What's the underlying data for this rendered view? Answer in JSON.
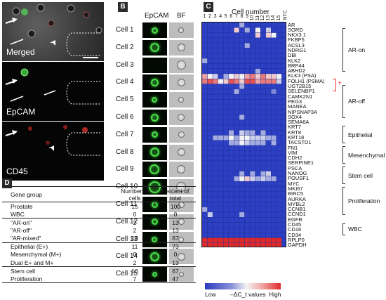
{
  "panels": {
    "a": "A",
    "b": "B",
    "c": "C",
    "d": "D"
  },
  "panel_a": {
    "images": [
      {
        "label": "Merged"
      },
      {
        "label": "EpCAM"
      },
      {
        "label": "CD45"
      }
    ]
  },
  "panel_b": {
    "col_headers": [
      "EpCAM",
      "BF"
    ],
    "cells": [
      "Cell 1",
      "Cell 2",
      "Cell 3",
      "Cell 4",
      "Cell 5",
      "Cell 6",
      "Cell 7",
      "Cell 8",
      "Cell 9",
      "Cell 10",
      "Cell 11",
      "Cell 12",
      "Cell 13",
      "Cell 14",
      "Cell 15"
    ]
  },
  "panel_c": {
    "title": "Cell number",
    "columns": [
      "1",
      "2",
      "3",
      "4",
      "5",
      "6",
      "7",
      "8",
      "9",
      "10",
      "11",
      "12",
      "13",
      "14",
      "15",
      "NTC"
    ],
    "genes": [
      "AR",
      "SORD",
      "NKX3.1",
      "FKBP5",
      "ACSL3",
      "NDRG1",
      "DBI",
      "KLK2",
      "BRP44",
      "ABHD2",
      "KLK3 (PSA)",
      "FOLH1 (PSMA)",
      "UGT2B15",
      "SELENBP1",
      "CAMK2N1",
      "PEG3",
      "MANEA",
      "NIPSNAP3A",
      "SOX4",
      "SEMA6A",
      "KRT7",
      "KRT8",
      "KRT18",
      "TACSTD1",
      "FN1",
      "VIM",
      "CDH2",
      "SERPINE1",
      "PSCA",
      "NANOG",
      "POUSF1",
      "MYC",
      "MKI67",
      "BIRC5",
      "AURKA",
      "MYBL2",
      "CCNB1",
      "CCND1",
      "EGFR",
      "CD45",
      "CD16",
      "CD34",
      "RPLP0",
      "GAPDH"
    ],
    "groups": [
      {
        "name": "AR-on"
      },
      {
        "name": "AR-off"
      },
      {
        "name": "Epithelial"
      },
      {
        "name": "Mesenchymal"
      },
      {
        "name": "Stem cell"
      },
      {
        "name": "Proliferation"
      },
      {
        "name": "WBC"
      }
    ],
    "highlight_mark": "*",
    "legend": {
      "low": "Low",
      "mid": "–ΔC_t values",
      "high": "High"
    },
    "colors": {
      "low": "#2d3fc2",
      "high": "#e02a2a",
      "mid": "#f3f3f3"
    },
    "heatmap_values": [
      [
        0,
        0,
        0,
        0,
        0,
        0,
        0,
        0.3,
        0,
        0,
        0,
        0,
        0,
        0,
        0,
        0
      ],
      [
        0,
        0,
        0,
        0,
        0,
        0,
        0.6,
        0,
        0.3,
        0,
        0.5,
        0,
        0.4,
        0,
        0,
        0
      ],
      [
        0,
        0,
        0,
        0,
        0,
        0,
        0,
        0,
        0,
        0,
        0.6,
        0,
        0.6,
        0.5,
        0,
        0
      ],
      [
        0,
        0,
        0,
        0,
        0,
        0,
        0,
        0,
        0,
        0,
        0,
        0,
        0,
        0,
        0,
        0
      ],
      [
        0,
        0,
        0,
        0,
        0,
        0,
        0,
        0,
        0.3,
        0,
        0,
        0,
        0,
        0,
        0,
        0
      ],
      [
        0,
        0,
        0,
        0,
        0,
        0,
        0,
        0,
        0,
        0,
        0,
        0,
        0,
        0,
        0,
        0
      ],
      [
        0,
        0,
        0,
        0,
        0,
        0,
        0,
        0,
        0,
        0,
        0,
        0,
        0,
        0,
        0,
        0
      ],
      [
        0.3,
        0,
        0,
        0,
        0,
        0,
        0,
        0,
        0,
        0,
        0,
        0,
        0,
        0,
        0,
        0
      ],
      [
        0,
        0,
        0,
        0,
        0,
        0,
        0,
        0,
        0,
        0,
        0,
        0,
        0,
        0,
        0,
        0
      ],
      [
        0,
        0,
        0,
        0,
        0,
        0,
        0,
        0,
        0,
        0,
        0.3,
        0,
        0,
        0,
        0,
        0
      ],
      [
        0.7,
        0.5,
        0.4,
        0,
        0.3,
        0.5,
        0.6,
        0.5,
        0.7,
        0.8,
        0.6,
        0.8,
        0.6,
        0.6,
        0.5,
        0
      ],
      [
        0.8,
        0.9,
        0.8,
        0.5,
        0.6,
        0.9,
        0.8,
        0.6,
        0.9,
        0.9,
        0.7,
        0.8,
        0.8,
        0.8,
        0.4,
        0
      ],
      [
        0,
        0,
        0,
        0,
        0,
        0,
        0,
        0.3,
        0,
        0,
        0,
        0,
        0,
        0,
        0,
        0
      ],
      [
        0,
        0,
        0,
        0,
        0,
        0,
        0.3,
        0,
        0,
        0,
        0,
        0,
        0,
        0.2,
        0,
        0
      ],
      [
        0,
        0,
        0,
        0,
        0,
        0,
        0,
        0,
        0,
        0,
        0,
        0,
        0,
        0,
        0,
        0
      ],
      [
        0,
        0,
        0,
        0,
        0,
        0,
        0,
        0,
        0,
        0,
        0,
        0,
        0,
        0,
        0,
        0
      ],
      [
        0,
        0,
        0,
        0,
        0,
        0,
        0,
        0,
        0,
        0,
        0,
        0,
        0,
        0,
        0,
        0
      ],
      [
        0,
        0,
        0,
        0,
        0,
        0,
        0,
        0,
        0,
        0,
        0,
        0,
        0,
        0,
        0,
        0
      ],
      [
        0,
        0,
        0,
        0,
        0,
        0,
        0,
        0.3,
        0,
        0,
        0,
        0,
        0,
        0,
        0,
        0
      ],
      [
        0,
        0,
        0,
        0,
        0,
        0,
        0,
        0,
        0,
        0,
        0,
        0,
        0,
        0,
        0,
        0
      ],
      [
        0,
        0,
        0,
        0,
        0,
        0,
        0,
        0,
        0,
        0,
        0,
        0,
        0,
        0,
        0,
        0
      ],
      [
        0,
        0,
        0,
        0,
        0,
        0.3,
        0,
        0.4,
        0.3,
        0.3,
        0,
        0.3,
        0,
        0,
        0,
        0
      ],
      [
        0,
        0,
        0.3,
        0.3,
        0.3,
        0.5,
        0.3,
        0.5,
        0.5,
        0.4,
        0.4,
        0.4,
        0.3,
        0.3,
        0,
        0
      ],
      [
        0,
        0,
        0,
        0,
        0,
        0.3,
        0.3,
        0.5,
        0.4,
        0.3,
        0.3,
        0.3,
        0,
        0.3,
        0,
        0
      ],
      [
        0,
        0,
        0,
        0,
        0,
        0,
        0,
        0,
        0,
        0,
        0,
        0,
        0,
        0,
        0,
        0
      ],
      [
        0,
        0,
        0,
        0,
        0,
        0,
        0,
        0,
        0,
        0,
        0,
        0,
        0,
        0,
        0,
        0
      ],
      [
        0,
        0,
        0,
        0,
        0,
        0,
        0,
        0,
        0,
        0,
        0,
        0,
        0,
        0,
        0,
        0
      ],
      [
        0,
        0,
        0,
        0,
        0,
        0,
        0,
        0,
        0,
        0,
        0,
        0,
        0,
        0,
        0,
        0
      ],
      [
        0,
        0,
        0,
        0,
        0,
        0,
        0,
        0,
        0,
        0,
        0,
        0,
        0,
        0,
        0,
        0
      ],
      [
        0,
        0,
        0,
        0,
        0,
        0,
        0,
        0.3,
        0,
        0.3,
        0,
        0.3,
        0.4,
        0,
        0,
        0
      ],
      [
        0,
        0,
        0,
        0,
        0,
        0,
        0.3,
        0.5,
        0.6,
        0.4,
        0.3,
        0.4,
        0.3,
        0.3,
        0,
        0
      ],
      [
        0,
        0,
        0,
        0,
        0,
        0,
        0,
        0,
        0,
        0,
        0,
        0,
        0,
        0,
        0,
        0
      ],
      [
        0,
        0,
        0,
        0,
        0,
        0,
        0,
        0,
        0,
        0,
        0,
        0,
        0,
        0,
        0,
        0
      ],
      [
        0,
        0,
        0,
        0,
        0,
        0,
        0,
        0,
        0,
        0,
        0,
        0,
        0,
        0,
        0,
        0
      ],
      [
        0,
        0,
        0,
        0,
        0,
        0,
        0,
        0,
        0,
        0,
        0,
        0,
        0,
        0,
        0,
        0
      ],
      [
        0,
        0,
        0,
        0,
        0,
        0,
        0,
        0,
        0,
        0,
        0,
        0,
        0,
        0,
        0,
        0
      ],
      [
        0.3,
        0,
        0,
        0,
        0,
        0,
        0,
        0,
        0,
        0,
        0,
        0,
        0,
        0,
        0,
        0
      ],
      [
        0,
        0.4,
        0,
        0,
        0,
        0,
        0,
        0.3,
        0,
        0,
        0,
        0,
        0,
        0,
        0,
        0
      ],
      [
        0,
        0,
        0,
        0,
        0,
        0,
        0,
        0,
        0,
        0,
        0,
        0,
        0,
        0,
        0,
        0
      ],
      [
        0,
        0,
        0,
        0,
        0,
        0,
        0,
        0,
        0,
        0,
        0,
        0,
        0,
        0,
        0,
        0
      ],
      [
        0,
        0,
        0,
        0,
        0,
        0,
        0,
        0,
        0,
        0,
        0,
        0,
        0,
        0,
        0,
        0
      ],
      [
        0,
        0,
        0,
        0,
        0,
        0,
        0,
        0,
        0,
        0,
        0,
        0,
        0,
        0,
        0,
        0
      ],
      [
        1,
        1,
        1,
        1,
        1,
        1,
        1,
        1,
        1,
        1,
        1,
        1,
        1,
        1,
        1,
        0
      ],
      [
        1,
        1,
        1,
        1,
        1,
        1,
        1,
        1,
        1,
        1,
        1,
        1,
        1,
        1,
        1,
        0
      ]
    ]
  },
  "panel_d": {
    "headers": [
      "Gene group",
      "Number of cells",
      "Percent of total"
    ],
    "sections": [
      [
        [
          "Prostate",
          "15",
          "100"
        ],
        [
          "WBC",
          "0",
          "0"
        ]
      ],
      [
        [
          "\"AR-on\"",
          "2",
          "13"
        ],
        [
          "\"AR-off\"",
          "2",
          "13"
        ],
        [
          "\"AR-mixed\"",
          "10",
          "67"
        ]
      ],
      [
        [
          "Epithelial (E+)",
          "11",
          "73"
        ],
        [
          "Mesenchymal (M+)",
          "0",
          "0"
        ],
        [
          "Dual E+ and M+",
          "2",
          "13"
        ]
      ],
      [
        [
          "Stem cell",
          "10",
          "67"
        ],
        [
          "Proliferation",
          "7",
          "47"
        ]
      ]
    ]
  }
}
